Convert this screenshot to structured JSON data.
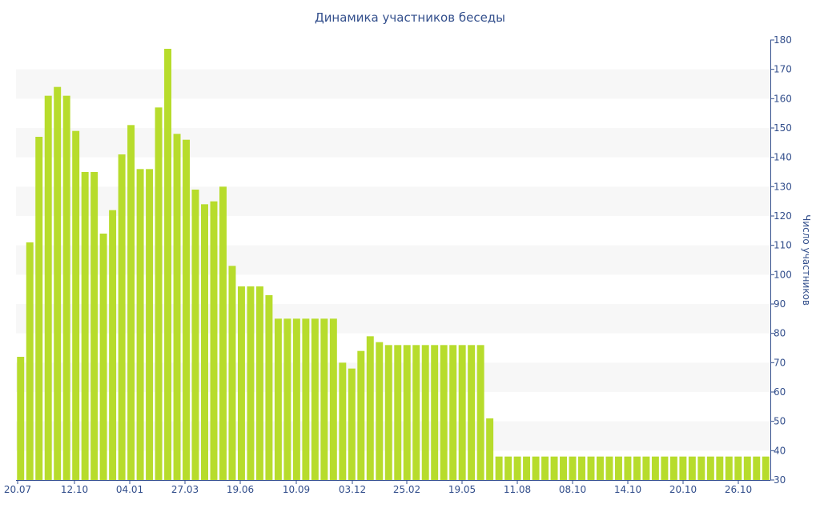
{
  "chart_data": {
    "type": "bar",
    "title": "Динамика участников беседы",
    "ylabel": "Число участников",
    "ylim": [
      30,
      180
    ],
    "yticks": [
      30,
      40,
      50,
      60,
      70,
      80,
      90,
      100,
      110,
      120,
      130,
      140,
      150,
      160,
      170,
      180
    ],
    "x_tick_labels": [
      "20.07",
      "12.10",
      "04.01",
      "27.03",
      "19.06",
      "10.09",
      "03.12",
      "25.02",
      "19.05",
      "11.08",
      "08.10",
      "14.10",
      "20.10",
      "26.10"
    ],
    "y_axis_position": "right",
    "bar_color": "#b7dc2c",
    "band_color": "#f7f7f7",
    "text_color": "#334f8c",
    "values": [
      72,
      111,
      147,
      161,
      164,
      161,
      149,
      135,
      135,
      114,
      122,
      141,
      151,
      136,
      136,
      157,
      177,
      148,
      146,
      129,
      124,
      125,
      130,
      103,
      96,
      96,
      96,
      93,
      85,
      85,
      85,
      85,
      85,
      85,
      85,
      70,
      68,
      74,
      79,
      77,
      76,
      76,
      76,
      76,
      76,
      76,
      76,
      76,
      76,
      76,
      76,
      51,
      38,
      38,
      38,
      38,
      38,
      38,
      38,
      38,
      38,
      38,
      38,
      38,
      38,
      38,
      38,
      38,
      38,
      38,
      38,
      38,
      38,
      38,
      38,
      38,
      38,
      38,
      38,
      38,
      38,
      38
    ]
  }
}
